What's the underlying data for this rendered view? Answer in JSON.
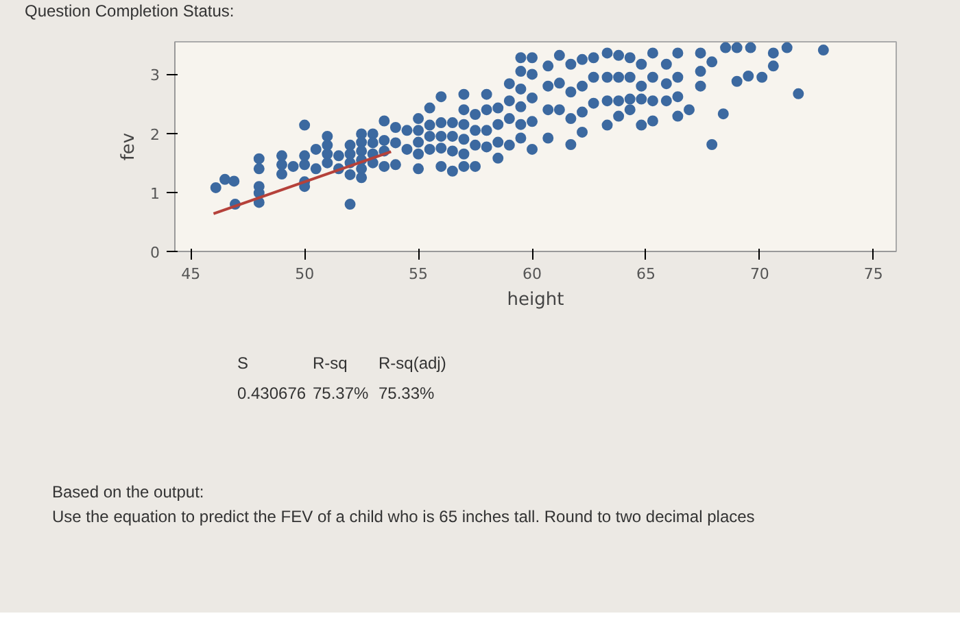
{
  "chart_data": {
    "type": "scatter",
    "xlabel": "height",
    "ylabel": "fev",
    "xlim": [
      44.3,
      76
    ],
    "ylim": [
      0,
      3.55
    ],
    "xticks": [
      45,
      50,
      55,
      60,
      65,
      70,
      75
    ],
    "yticks": [
      0,
      1,
      2,
      3
    ],
    "grid": false,
    "series": [
      {
        "marker": "circle",
        "color": "#3c69a0",
        "x": [
          46.1,
          46.5,
          46.9,
          46.95,
          48,
          48,
          48,
          48,
          48,
          49,
          49,
          49,
          49.5,
          50,
          50,
          50,
          50,
          50,
          50.5,
          50.5,
          51,
          51,
          51,
          51,
          51.5,
          51.5,
          52,
          52,
          52,
          52,
          52,
          52.5,
          52.5,
          52.5,
          52.5,
          52.5,
          52.5,
          53,
          53,
          53,
          53,
          53.5,
          53.5,
          53.5,
          53.5,
          54,
          54,
          54,
          54.5,
          54.5,
          55,
          55,
          55,
          55,
          55,
          55.5,
          55.5,
          55.5,
          55.5,
          56,
          56,
          56,
          56,
          56,
          56.5,
          56.5,
          56.5,
          56.5,
          57,
          57,
          57,
          57,
          57,
          57,
          57.5,
          57.5,
          57.5,
          57.5,
          58,
          58,
          58,
          58,
          58.5,
          58.5,
          58.5,
          58.5,
          59,
          59,
          59,
          59,
          59.5,
          59.5,
          59.5,
          59.5,
          59.5,
          59.5,
          60,
          60,
          60,
          60,
          60,
          60.7,
          60.7,
          60.7,
          60.7,
          61.2,
          61.2,
          61.2,
          61.7,
          61.7,
          61.7,
          61.7,
          62.2,
          62.2,
          62.2,
          62.2,
          62.7,
          62.7,
          62.7,
          63.3,
          63.3,
          63.3,
          63.3,
          63.8,
          63.8,
          63.8,
          63.8,
          64.3,
          64.3,
          64.3,
          64.3,
          64.8,
          64.8,
          64.8,
          64.8,
          65.3,
          65.3,
          65.3,
          65.3,
          65.9,
          65.9,
          65.9,
          66.4,
          66.4,
          66.4,
          66.4,
          66.9,
          67.4,
          67.4,
          67.4,
          67.9,
          67.9,
          68.4,
          68.5,
          69,
          69,
          69.5,
          69.6,
          70.1,
          70.6,
          70.6,
          71.2,
          71.7,
          72.8
        ],
        "values": [
          1.08,
          1.22,
          1.19,
          0.8,
          1.57,
          1.4,
          1.1,
          0.99,
          0.83,
          1.62,
          1.47,
          1.31,
          1.44,
          2.14,
          1.62,
          1.47,
          1.18,
          1.1,
          1.73,
          1.4,
          1.95,
          1.8,
          1.65,
          1.5,
          1.62,
          1.4,
          1.8,
          1.65,
          1.5,
          1.3,
          0.8,
          1.99,
          1.85,
          1.7,
          1.55,
          1.4,
          1.25,
          1.99,
          1.84,
          1.65,
          1.5,
          2.21,
          1.88,
          1.7,
          1.44,
          2.1,
          1.84,
          1.47,
          2.05,
          1.73,
          2.25,
          2.05,
          1.85,
          1.65,
          1.4,
          2.43,
          2.14,
          1.95,
          1.73,
          2.62,
          2.18,
          1.95,
          1.75,
          1.44,
          2.18,
          1.95,
          1.7,
          1.36,
          2.66,
          2.4,
          2.15,
          1.9,
          1.65,
          1.44,
          2.32,
          2.05,
          1.8,
          1.44,
          2.66,
          2.4,
          2.05,
          1.77,
          2.43,
          2.15,
          1.85,
          1.58,
          2.84,
          2.55,
          2.25,
          1.8,
          3.28,
          3.05,
          2.75,
          2.45,
          2.15,
          1.92,
          3.28,
          3.0,
          2.6,
          2.2,
          1.73,
          3.14,
          2.8,
          2.4,
          1.92,
          3.32,
          2.85,
          2.4,
          3.17,
          2.7,
          2.25,
          1.81,
          3.25,
          2.8,
          2.36,
          2.02,
          3.28,
          2.95,
          2.51,
          3.36,
          2.95,
          2.55,
          2.14,
          3.32,
          2.95,
          2.55,
          2.29,
          3.28,
          2.95,
          2.58,
          2.4,
          2.14,
          3.17,
          2.8,
          2.58,
          2.21,
          3.36,
          2.95,
          2.55,
          3.17,
          2.84,
          2.55,
          3.36,
          2.95,
          2.62,
          2.29,
          2.4,
          3.36,
          3.05,
          2.8,
          1.81,
          3.21,
          2.33,
          3.45,
          2.88,
          3.45,
          2.97,
          3.45,
          2.95,
          3.14,
          3.36,
          3.45,
          2.67,
          3.41
        ]
      },
      {
        "type": "line",
        "color": "#b5413a",
        "x": [
          46,
          53.8
        ],
        "values": [
          0.64,
          1.69
        ]
      }
    ],
    "annotations": [
      "Question Completion Status:",
      "S",
      "R-sq",
      "R-sq(adj)",
      "0.430676",
      "75.37%",
      "75.33%",
      "Based on the output:",
      "Use the equation to predict the FEV of a child who is 65 inches tall. Round to two decimal places"
    ]
  }
}
